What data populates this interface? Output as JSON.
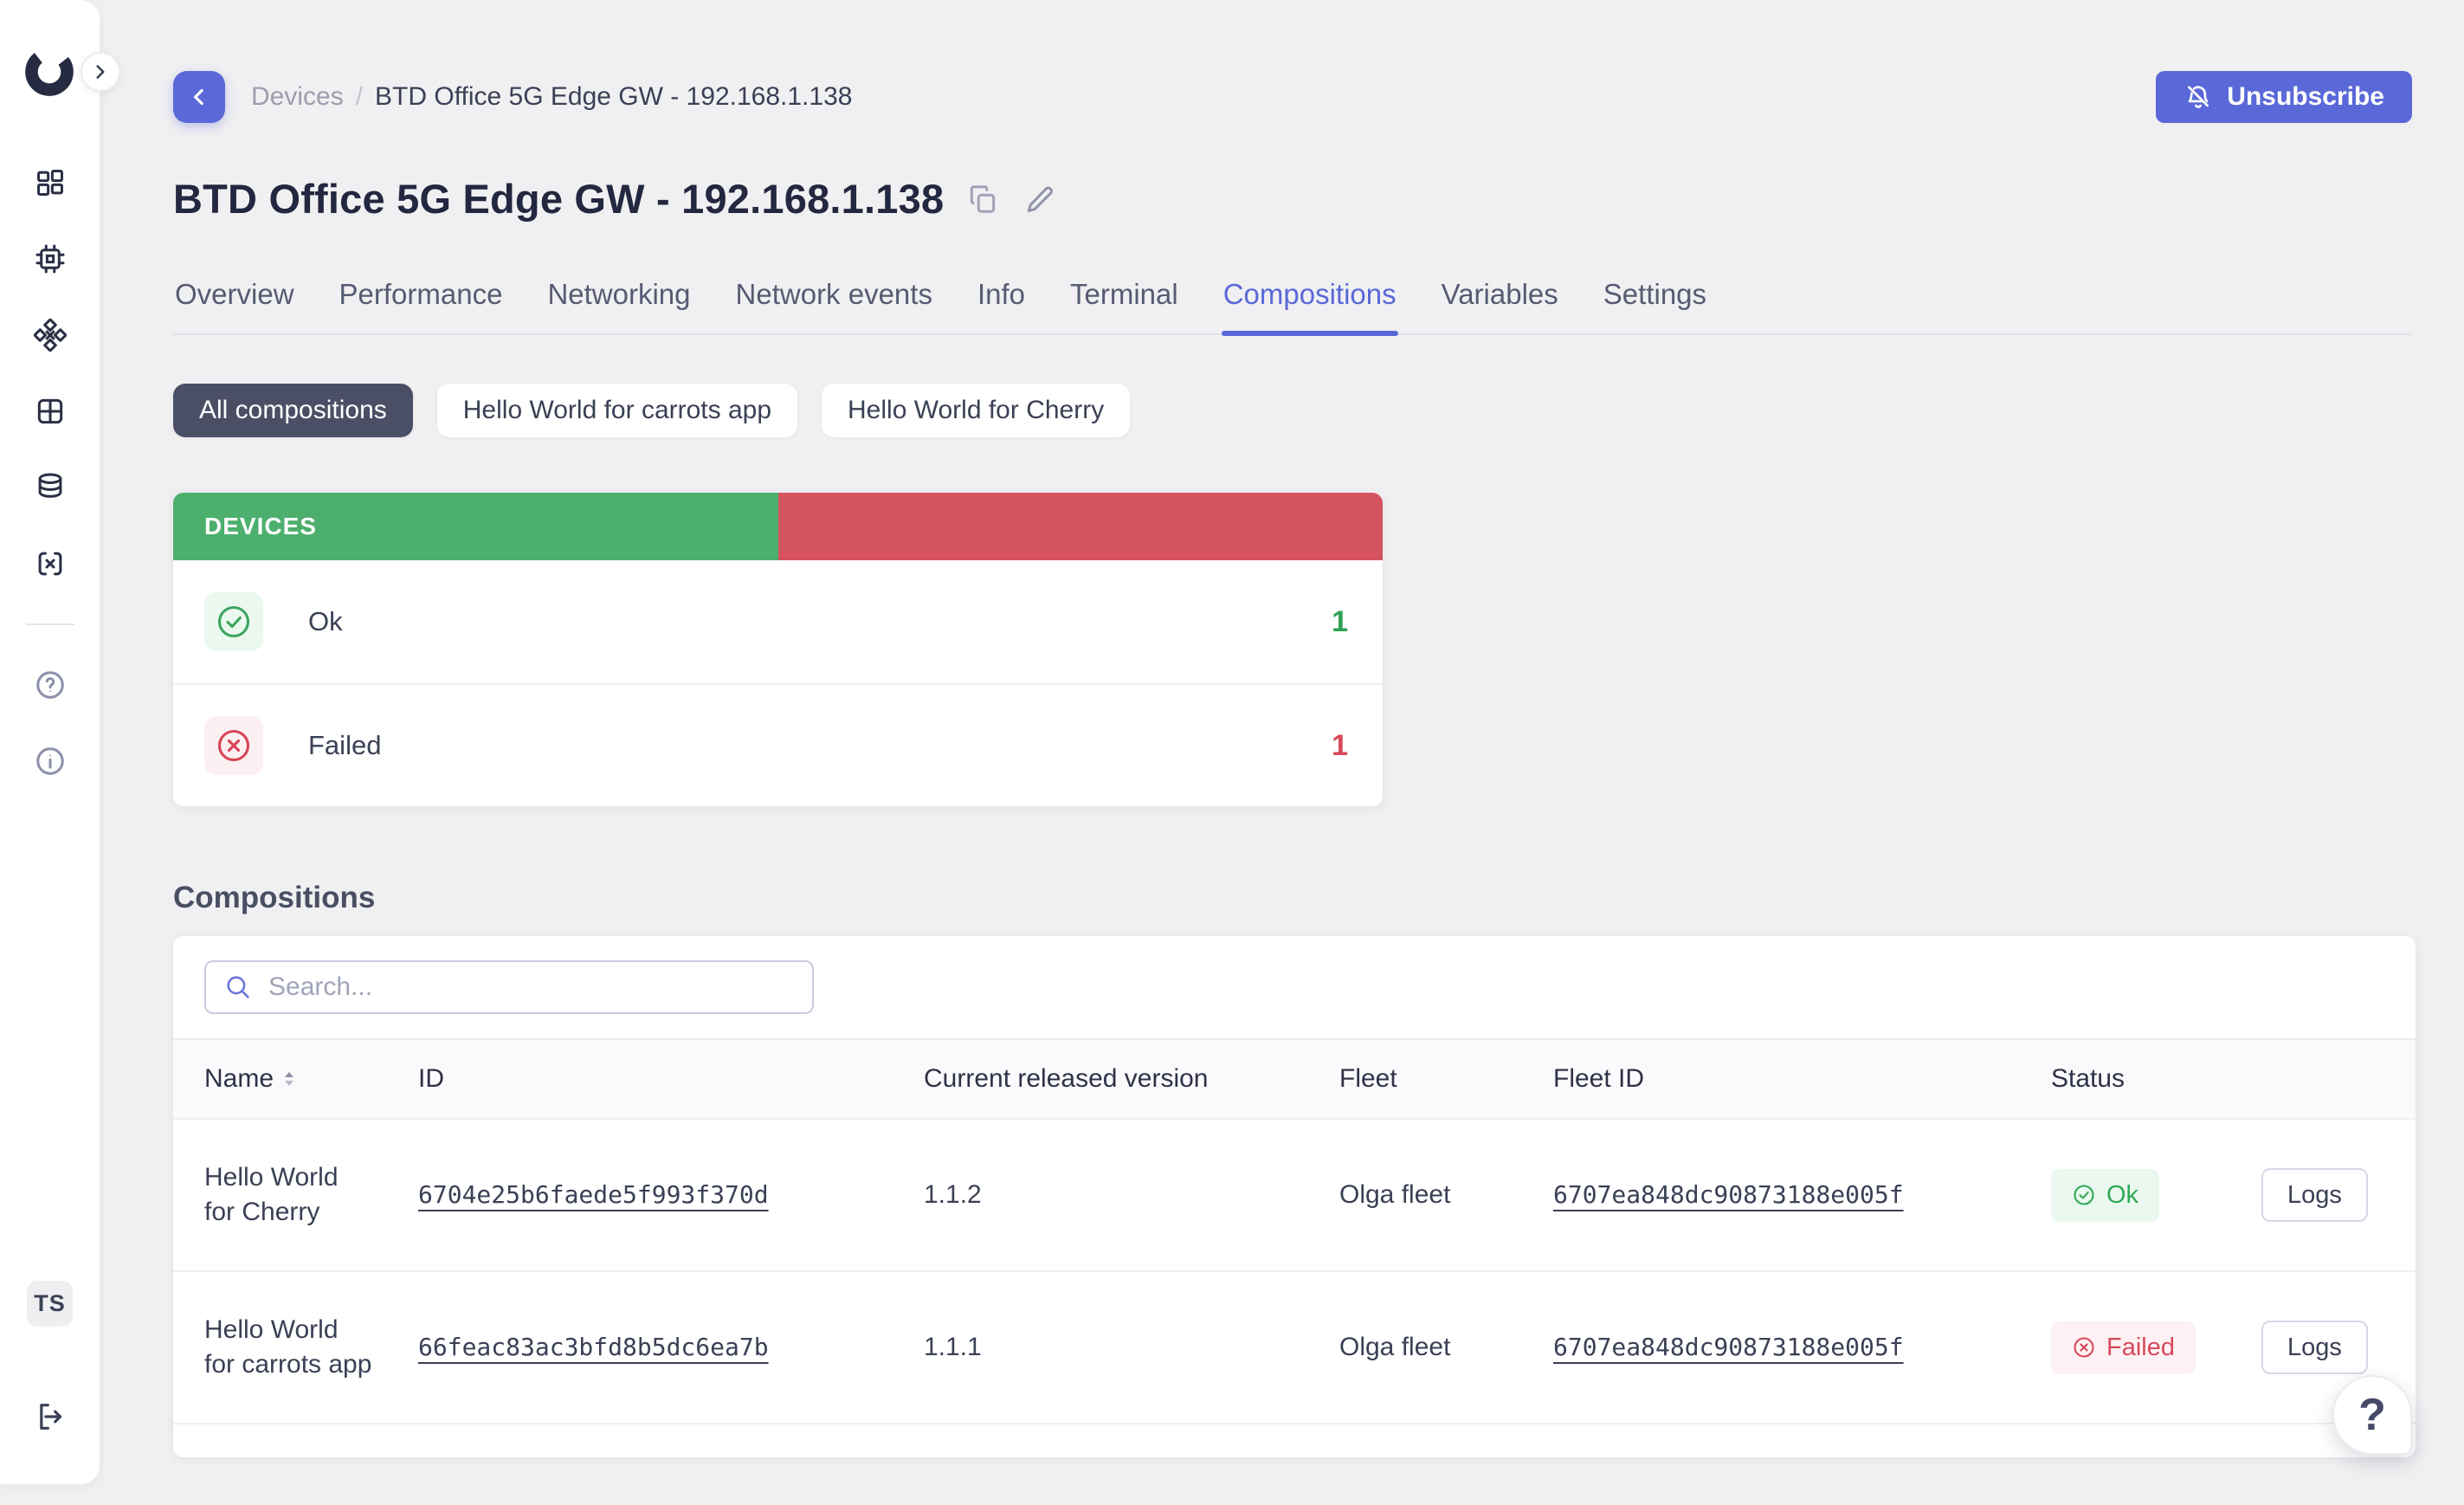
{
  "sidebar": {
    "logo_icon": "brand-logo",
    "nav_icons": [
      "dashboard-icon",
      "device-chip-icon",
      "network-nodes-icon",
      "table-grid-icon",
      "database-icon",
      "variables-brackets-icon",
      "help-circle-icon",
      "info-circle-icon"
    ],
    "avatar_initials": "TS",
    "logout_icon": "logout-icon"
  },
  "header": {
    "breadcrumb": {
      "parent": "Devices",
      "separator": "/",
      "current": "BTD Office 5G Edge GW - 192.168.1.138"
    },
    "unsubscribe_label": "Unsubscribe",
    "title": "BTD Office 5G Edge GW - 192.168.1.138"
  },
  "tabs": [
    {
      "label": "Overview",
      "active": false
    },
    {
      "label": "Performance",
      "active": false
    },
    {
      "label": "Networking",
      "active": false
    },
    {
      "label": "Network events",
      "active": false
    },
    {
      "label": "Info",
      "active": false
    },
    {
      "label": "Terminal",
      "active": false
    },
    {
      "label": "Compositions",
      "active": true
    },
    {
      "label": "Variables",
      "active": false
    },
    {
      "label": "Settings",
      "active": false
    }
  ],
  "filters": [
    {
      "label": "All compositions",
      "active": true
    },
    {
      "label": "Hello World for carrots app",
      "active": false
    },
    {
      "label": "Hello World for Cherry",
      "active": false
    }
  ],
  "devices_card": {
    "title": "DEVICES",
    "segments": [
      {
        "label": "Ok",
        "count": 1,
        "percent": 50,
        "color": "#4CAF6D"
      },
      {
        "label": "Failed",
        "count": 1,
        "percent": 50,
        "color": "#D5525F"
      }
    ]
  },
  "compositions": {
    "heading": "Compositions",
    "search_placeholder": "Search...",
    "columns": {
      "name": "Name",
      "id": "ID",
      "version": "Current released version",
      "fleet": "Fleet",
      "fleet_id": "Fleet ID",
      "status": "Status"
    },
    "rows": [
      {
        "name": "Hello World for Cherry",
        "id": "6704e25b6faede5f993f370d",
        "version": "1.1.2",
        "fleet": "Olga fleet",
        "fleet_id": "6707ea848dc90873188e005f",
        "status": "Ok",
        "action": "Logs"
      },
      {
        "name": "Hello World for carrots app",
        "id": "66feac83ac3bfd8b5dc6ea7b",
        "version": "1.1.1",
        "fleet": "Olga fleet",
        "fleet_id": "6707ea848dc90873188e005f",
        "status": "Failed",
        "action": "Logs"
      }
    ]
  },
  "help_label": "?",
  "colors": {
    "accent": "#5A68D8",
    "green_bar": "#4CAF6D",
    "red_bar": "#D5525F",
    "ok_text": "#2FA956",
    "failed_text": "#D5495A",
    "chip_active_bg": "#4B4F66",
    "page_bg": "#F0F0F2"
  }
}
